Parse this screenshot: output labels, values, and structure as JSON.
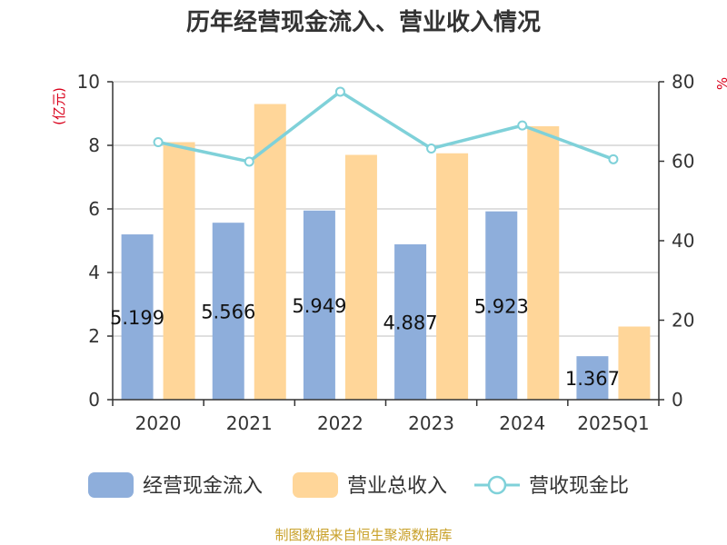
{
  "chart_data": {
    "type": "bar",
    "title": "历年经营现金流入、营业收入情况",
    "categories": [
      "2020",
      "2021",
      "2022",
      "2023",
      "2024",
      "2025Q1"
    ],
    "series": [
      {
        "name": "经营现金流入",
        "kind": "bar",
        "axis": "left",
        "color": "#8eaedb",
        "values": [
          5.199,
          5.566,
          5.949,
          4.887,
          5.923,
          1.367
        ]
      },
      {
        "name": "营业总收入",
        "kind": "bar",
        "axis": "left",
        "color": "#ffd699",
        "values": [
          8.1,
          9.3,
          7.7,
          7.75,
          8.6,
          2.3
        ]
      },
      {
        "name": "营收现金比",
        "kind": "line",
        "axis": "right",
        "color": "#7fd1d9",
        "values": [
          64.8,
          59.9,
          77.5,
          63.2,
          69.0,
          60.5
        ]
      }
    ],
    "data_labels": [
      "5.199",
      "5.566",
      "5.949",
      "4.887",
      "5.923",
      "1.367"
    ],
    "y_left": {
      "unit": "(亿元)",
      "ylim": [
        0,
        10
      ],
      "ticks": [
        "0",
        "2",
        "4",
        "6",
        "8",
        "10"
      ]
    },
    "y_right": {
      "unit": "%",
      "ylim": [
        0,
        80
      ],
      "ticks": [
        "0",
        "20",
        "40",
        "60",
        "80"
      ]
    },
    "grid": true,
    "legend": {
      "position": "bottom"
    }
  },
  "source": "制图数据来自恒生聚源数据库"
}
